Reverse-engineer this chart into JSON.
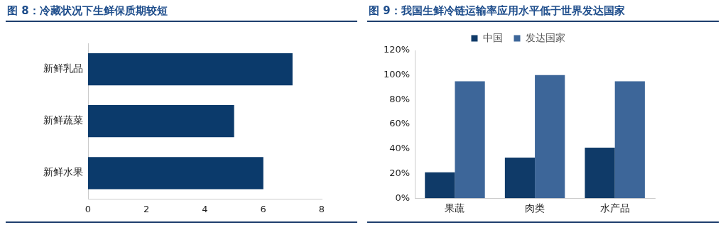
{
  "chart_data": [
    {
      "type": "bar",
      "title": "图 8：冷藏状况下生鲜保质期较短",
      "orientation": "horizontal",
      "categories": [
        "新鲜乳品",
        "新鲜蔬菜",
        "新鲜水果"
      ],
      "values": [
        7,
        5,
        6
      ],
      "color": "#0b3a6b",
      "xlim": [
        0,
        8
      ],
      "xticks": [
        0,
        2,
        4,
        6,
        8
      ],
      "grid": false,
      "legend": false
    },
    {
      "type": "bar",
      "title": "图 9：我国生鲜冷链运输率应用水平低于世界发达国家",
      "categories": [
        "果蔬",
        "肉类",
        "水产品"
      ],
      "series": [
        {
          "name": "中国",
          "color": "#0f3a68",
          "values": [
            21,
            33,
            41
          ]
        },
        {
          "name": "发达国家",
          "color": "#3d6699",
          "values": [
            95,
            100,
            95
          ]
        }
      ],
      "ylim": [
        0,
        120
      ],
      "yticks": [
        {
          "value": 0,
          "label": "0%"
        },
        {
          "value": 20,
          "label": "20%"
        },
        {
          "value": 40,
          "label": "40%"
        },
        {
          "value": 60,
          "label": "60%"
        },
        {
          "value": 80,
          "label": "80%"
        },
        {
          "value": 100,
          "label": "100%"
        },
        {
          "value": 120,
          "label": "120%"
        }
      ],
      "grid": false,
      "legend": "top"
    }
  ]
}
